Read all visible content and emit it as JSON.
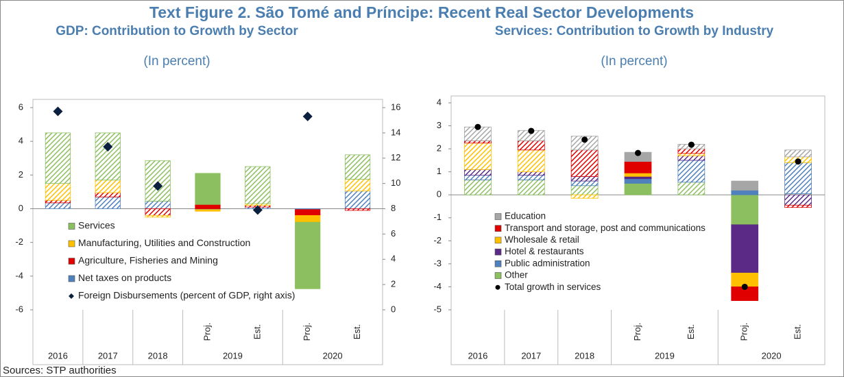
{
  "title": "Text Figure 2.  São Tomé and Príncipe: Recent Real Sector Developments",
  "source": "Sources: STP authorities",
  "chart_data": [
    {
      "type": "bar",
      "stacked": true,
      "title": "GDP: Contribution to Growth by Sector",
      "subtitle": "(In percent)",
      "categories": [
        null,
        null,
        null,
        "Proj.",
        "Est.",
        "Proj.",
        "Est."
      ],
      "groups": [
        {
          "label": "2016",
          "size": 1
        },
        {
          "label": "2017",
          "size": 1
        },
        {
          "label": "2018",
          "size": 1
        },
        {
          "label": "2019",
          "size": 2
        },
        {
          "label": "2020",
          "size": 2
        }
      ],
      "hatched": [
        true,
        true,
        true,
        false,
        true,
        false,
        true
      ],
      "ylim": [
        -6,
        6
      ],
      "yticks": [
        -6,
        -4,
        -2,
        0,
        2,
        4,
        6
      ],
      "y2lim": [
        0,
        16
      ],
      "y2ticks": [
        0,
        2,
        4,
        6,
        8,
        10,
        12,
        14,
        16
      ],
      "legend": "inside-bottom-left",
      "series": [
        {
          "name": "Services",
          "color": "#8cbf5f",
          "values": [
            3.0,
            2.8,
            2.4,
            1.85,
            2.2,
            -3.95,
            1.45
          ]
        },
        {
          "name": "Manufacturing, Utilities and Construction",
          "color": "#ffc000",
          "values": [
            1.0,
            0.75,
            -0.1,
            -0.1,
            0.1,
            -0.4,
            0.7
          ]
        },
        {
          "name": "Agriculture, Fisheries and Mining",
          "color": "#e00000",
          "values": [
            0.15,
            0.25,
            -0.4,
            0.25,
            0.1,
            -0.35,
            -0.1
          ]
        },
        {
          "name": "Net taxes on products",
          "color": "#4f81bd",
          "values": [
            0.35,
            0.7,
            0.45,
            -0.05,
            0.1,
            -0.05,
            1.05
          ]
        },
        {
          "name": "Foreign Disbursements (percent of GDP, right axis)",
          "color": "#0b1f3f",
          "type": "scatter",
          "marker": "diamond",
          "axis": "y2",
          "values": [
            15.7,
            12.9,
            9.8,
            null,
            7.9,
            15.3,
            null
          ]
        }
      ]
    },
    {
      "type": "bar",
      "stacked": true,
      "title": "Services: Contribution to Growth by Industry",
      "subtitle": "(In percent)",
      "categories": [
        null,
        null,
        null,
        "Proj.",
        "Est.",
        "Proj.",
        "Est."
      ],
      "groups": [
        {
          "label": "2016",
          "size": 1
        },
        {
          "label": "2017",
          "size": 1
        },
        {
          "label": "2018",
          "size": 1
        },
        {
          "label": "2019",
          "size": 2
        },
        {
          "label": "2020",
          "size": 2
        }
      ],
      "hatched": [
        true,
        true,
        true,
        false,
        true,
        false,
        true
      ],
      "ylim": [
        -5,
        4
      ],
      "yticks": [
        -5,
        -4,
        -3,
        -2,
        -1,
        0,
        1,
        2,
        3,
        4
      ],
      "legend": "inside-bottom-left",
      "series": [
        {
          "name": "Education",
          "color": "#a6a6a6",
          "values": [
            0.6,
            0.45,
            0.6,
            0.4,
            0.2,
            0.4,
            0.3
          ]
        },
        {
          "name": "Transport and storage, post and communications",
          "color": "#e00000",
          "values": [
            0.1,
            0.4,
            1.15,
            0.5,
            0.2,
            -0.6,
            -0.1
          ]
        },
        {
          "name": "Wholesale & retail",
          "color": "#ffc000",
          "values": [
            1.15,
            0.95,
            -0.15,
            0.15,
            0.1,
            -0.6,
            0.25
          ]
        },
        {
          "name": "Hotel & restaurants",
          "color": "#5b2a86",
          "values": [
            0.25,
            0.15,
            0.2,
            0.1,
            0.2,
            -2.1,
            -0.45
          ]
        },
        {
          "name": "Public administration",
          "color": "#4f81bd",
          "values": [
            0.2,
            0.2,
            0.2,
            0.2,
            0.95,
            0.2,
            1.35
          ]
        },
        {
          "name": "Other",
          "color": "#8cbf5f",
          "values": [
            0.65,
            0.65,
            0.4,
            0.5,
            0.55,
            -1.3,
            0.05
          ]
        },
        {
          "name": "Total growth in services",
          "color": "#000000",
          "type": "scatter",
          "marker": "circle",
          "values": [
            2.95,
            2.78,
            2.4,
            1.82,
            2.18,
            -4.0,
            1.45
          ]
        }
      ]
    }
  ]
}
